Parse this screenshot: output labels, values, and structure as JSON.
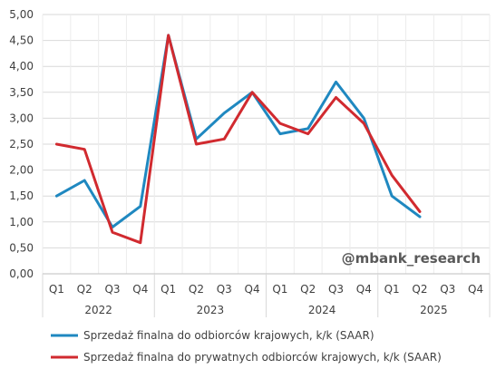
{
  "chart_data": {
    "type": "line",
    "categories": [
      "Q1",
      "Q2",
      "Q3",
      "Q4",
      "Q1",
      "Q2",
      "Q3",
      "Q4",
      "Q1",
      "Q2",
      "Q3",
      "Q4",
      "Q1",
      "Q2",
      "Q3",
      "Q4"
    ],
    "years": [
      "2022",
      "2023",
      "2024",
      "2025"
    ],
    "y_ticks": [
      "0,00",
      "0,50",
      "1,00",
      "1,50",
      "2,00",
      "2,50",
      "3,00",
      "3,50",
      "4,00",
      "4,50",
      "5,00"
    ],
    "ylim": [
      0,
      5
    ],
    "grid": true,
    "legend_position": "bottom",
    "series": [
      {
        "name": "Sprzedaż finalna do odbiorców krajowych, k/k (SAAR)",
        "color": "#1f88c0",
        "values": [
          1.5,
          1.8,
          0.9,
          1.3,
          4.6,
          2.6,
          3.1,
          3.5,
          2.7,
          2.8,
          3.7,
          3.0,
          1.5,
          1.1,
          null,
          null
        ]
      },
      {
        "name": "Sprzedaż finalna do prywatnych odbiorców krajowych, k/k (SAAR)",
        "color": "#d12a2f",
        "values": [
          2.5,
          2.4,
          0.8,
          0.6,
          4.6,
          2.5,
          2.6,
          3.5,
          2.9,
          2.7,
          3.4,
          2.9,
          1.9,
          1.2,
          null,
          null
        ]
      }
    ],
    "watermark": "@mbank_research"
  }
}
